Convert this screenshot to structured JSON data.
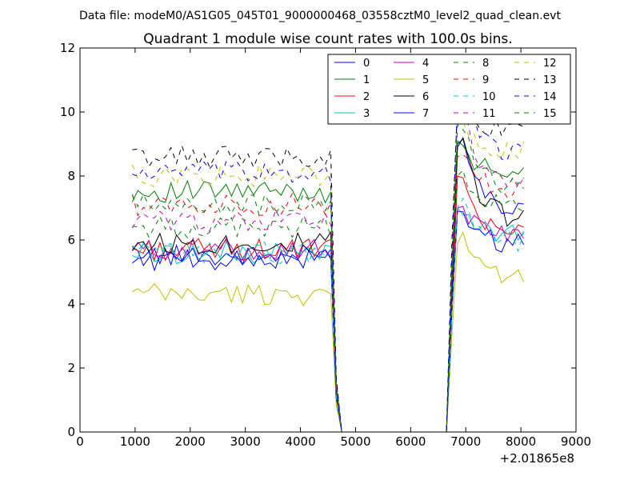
{
  "suptitle": "Data file: modeM0/AS1G05_045T01_9000000468_03558cztM0_level2_quad_clean.evt",
  "chart_data": {
    "type": "line",
    "title": "Quadrant 1 module wise count rates with 100.0s bins.",
    "xlabel": "",
    "ylabel": "",
    "x_offset_label": "+2.01865e8",
    "xlim": [
      0,
      9000
    ],
    "ylim": [
      0,
      12
    ],
    "xticks": [
      0,
      1000,
      2000,
      3000,
      4000,
      5000,
      6000,
      7000,
      8000,
      9000
    ],
    "xtick_labels": [
      "0",
      "1000",
      "2000",
      "3000",
      "4000",
      "5000",
      "6000",
      "7000",
      "8000",
      "9000"
    ],
    "yticks": [
      0,
      2,
      4,
      6,
      8,
      10,
      12
    ],
    "ytick_labels": [
      "0",
      "2",
      "4",
      "6",
      "8",
      "10",
      "12"
    ],
    "grid": false,
    "legend_position": "top-right",
    "legend_columns": 4,
    "x_start": 950,
    "x_step": 100,
    "gap_start": 4750,
    "gap_end": 6650,
    "series": [
      {
        "name": "0",
        "color": "#0000ff",
        "dash": "solid",
        "level1": 5.5,
        "level2": 6.8,
        "peak": 9.0
      },
      {
        "name": "1",
        "color": "#008000",
        "dash": "solid",
        "level1": 7.5,
        "level2": 7.9,
        "peak": 9.1
      },
      {
        "name": "2",
        "color": "#ff0000",
        "dash": "solid",
        "level1": 5.7,
        "level2": 6.2,
        "peak": 8.0
      },
      {
        "name": "3",
        "color": "#00bfbf",
        "dash": "solid",
        "level1": 5.6,
        "level2": 6.1,
        "peak": 7.0
      },
      {
        "name": "4",
        "color": "#bf00bf",
        "dash": "solid",
        "level1": 5.7,
        "level2": 6.2,
        "peak": 7.0
      },
      {
        "name": "5",
        "color": "#bfbf00",
        "dash": "solid",
        "level1": 4.3,
        "level2": 4.7,
        "peak": 5.9
      },
      {
        "name": "6",
        "color": "#000000",
        "dash": "solid",
        "level1": 5.9,
        "level2": 6.6,
        "peak": 8.9
      },
      {
        "name": "7",
        "color": "#0000ff",
        "dash": "solid",
        "level1": 5.4,
        "level2": 5.8,
        "peak": 6.9
      },
      {
        "name": "8",
        "color": "#008000",
        "dash": "dashed",
        "level1": 6.4,
        "level2": 7.0,
        "peak": 8.0
      },
      {
        "name": "9",
        "color": "#ff0000",
        "dash": "dashed",
        "level1": 7.1,
        "level2": 7.6,
        "peak": 8.6
      },
      {
        "name": "10",
        "color": "#00bfbf",
        "dash": "dashed",
        "level1": 5.6,
        "level2": 5.9,
        "peak": 7.0
      },
      {
        "name": "11",
        "color": "#bf00bf",
        "dash": "dashed",
        "level1": 6.6,
        "level2": 7.6,
        "peak": 10.2
      },
      {
        "name": "12",
        "color": "#bfbf00",
        "dash": "dashed",
        "level1": 8.0,
        "level2": 8.7,
        "peak": 9.9
      },
      {
        "name": "13",
        "color": "#000000",
        "dash": "dashed",
        "level1": 8.6,
        "level2": 9.3,
        "peak": 10.3
      },
      {
        "name": "14",
        "color": "#0000ff",
        "dash": "dashed",
        "level1": 8.1,
        "level2": 8.6,
        "peak": 10.4
      },
      {
        "name": "15",
        "color": "#008000",
        "dash": "dashed",
        "level1": 7.1,
        "level2": 7.6,
        "peak": 9.6
      }
    ]
  }
}
